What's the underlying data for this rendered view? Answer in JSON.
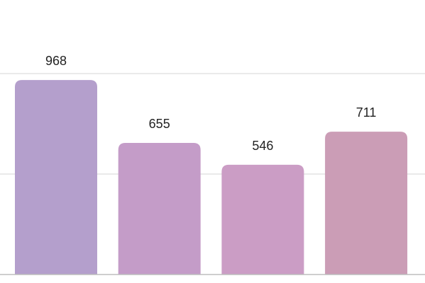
{
  "chart_data": {
    "type": "bar",
    "categories": [
      "",
      "",
      "",
      ""
    ],
    "values": [
      968,
      655,
      546,
      711
    ],
    "data_labels": [
      "968",
      "655",
      "546",
      "711"
    ],
    "title": "",
    "xlabel": "",
    "ylabel": "",
    "ylim": [
      0,
      1000
    ],
    "grid": true,
    "gridlines": [
      0,
      500,
      1000
    ],
    "legend": "none",
    "colors": [
      "#b49fcc",
      "#c49cc8",
      "#cb9dc5",
      "#cb9db6"
    ]
  }
}
